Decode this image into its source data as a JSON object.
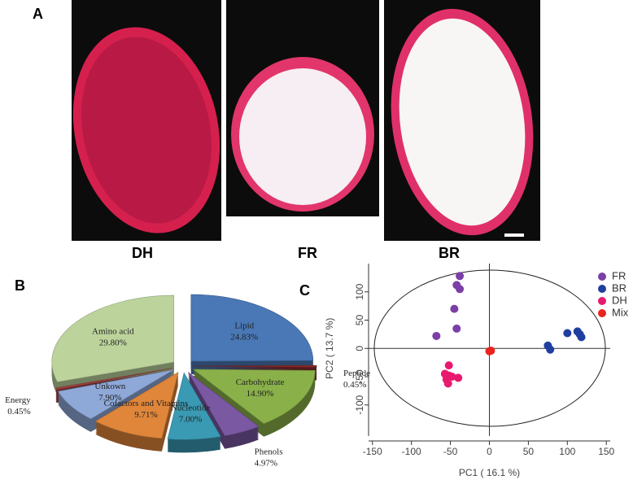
{
  "panel_a": {
    "label": "A",
    "photos": [
      "DH",
      "FR",
      "BR"
    ]
  },
  "chart_data": [
    {
      "type": "pie",
      "panel": "B",
      "categories": [
        "Lipid",
        "Peptide",
        "Carbohydrate",
        "Phenols",
        "Nucleotide",
        "Cofactors and Vitamins",
        "Unkown",
        "Energy",
        "Amino acid"
      ],
      "values": [
        24.83,
        0.45,
        14.9,
        4.97,
        7.0,
        9.71,
        7.9,
        0.45,
        29.8
      ],
      "value_labels": [
        "24.83%",
        "0.45%",
        "14.90%",
        "4.97%",
        "7.00%",
        "9.71%",
        "7.90%",
        "0.45%",
        "29.80%"
      ],
      "colors": [
        "#4a78b6",
        "#8b2a2a",
        "#8ab04a",
        "#7a58a2",
        "#3a9ab4",
        "#e0863a",
        "#8ea8d8",
        "#a04040",
        "#bcd49c"
      ]
    },
    {
      "type": "scatter",
      "panel": "C",
      "x_label": "PC1 ( 16.1 %)",
      "y_label": "PC2 ( 13.7 %)",
      "xlim": [
        -155,
        155
      ],
      "ylim": [
        -155,
        150
      ],
      "xticks": [
        -150,
        -100,
        -50,
        0,
        50,
        100,
        150
      ],
      "yticks": [
        -100,
        -50,
        0,
        50,
        100
      ],
      "series": [
        {
          "name": "FR",
          "color": "#7b3fa8",
          "x": [
            -38,
            -42,
            -38,
            -45,
            -42,
            -68
          ],
          "values": [
            128,
            112,
            105,
            70,
            35,
            22
          ]
        },
        {
          "name": "BR",
          "color": "#1f3fa0",
          "x": [
            75,
            78,
            100,
            113,
            116,
            118
          ],
          "values": [
            5,
            -2,
            27,
            30,
            25,
            20
          ]
        },
        {
          "name": "DH",
          "color": "#e8196e",
          "x": [
            -52,
            -57,
            -52,
            -55,
            -53,
            -48,
            -40
          ],
          "values": [
            -30,
            -45,
            -48,
            -55,
            -62,
            -50,
            -52
          ]
        },
        {
          "name": "Mix",
          "color": "#e8241c",
          "x": [
            0,
            2
          ],
          "values": [
            -5,
            -4
          ]
        }
      ]
    }
  ]
}
